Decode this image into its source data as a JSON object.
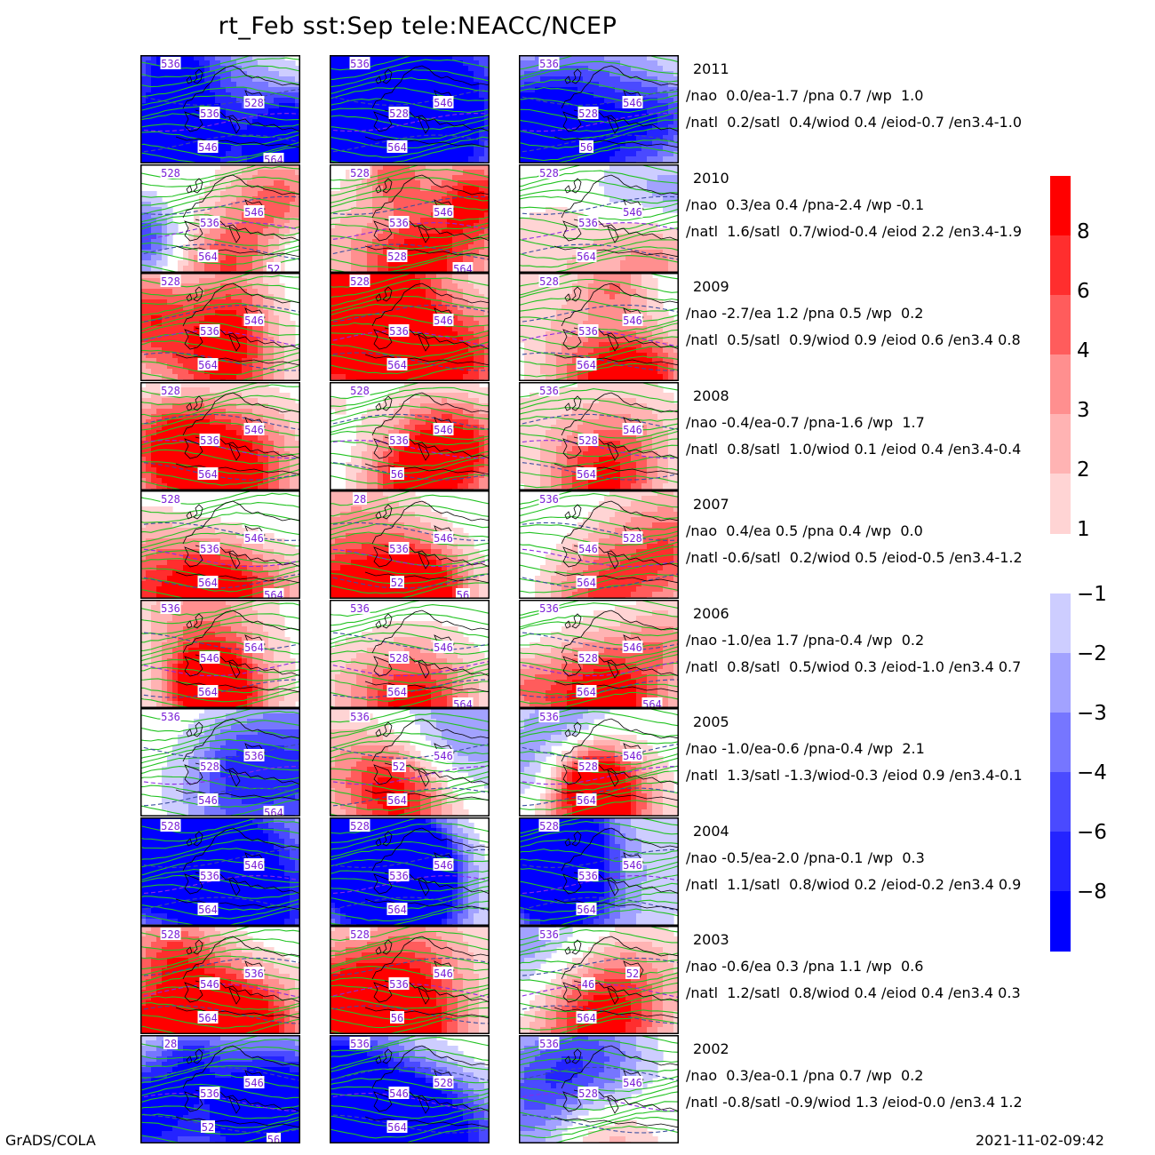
{
  "title": "rt_Feb  sst:Sep  tele:NEACC/NCEP",
  "footer_left": "GrADS/COLA",
  "footer_right": "2021-11-02-09:42",
  "colors": {
    "pos": [
      "#ffd4d4",
      "#ffb3b3",
      "#ff8f8f",
      "#ff5c5c",
      "#ff2e2e",
      "#ff0000"
    ],
    "neg": [
      "#cdcdff",
      "#a2a2ff",
      "#7676ff",
      "#4a4aff",
      "#2424ff",
      "#0000ff"
    ],
    "contour_green": "#22c322",
    "contour_dash_blue": "#3b4fa0",
    "contour_dash_purple": "#8a2be2",
    "coast": "#000000"
  },
  "colorbar_pos_labels": [
    "8",
    "6",
    "4",
    "3",
    "2",
    "1"
  ],
  "colorbar_neg_labels": [
    "-1",
    "-2",
    "-3",
    "-4",
    "-6",
    "-8"
  ],
  "rows": [
    {
      "year": "2011",
      "line1": "/nao  0.0/ea-1.7 /pna 0.7 /wp  1.0",
      "line2": "/natl  0.2/satl  0.4/wiod 0.4 /eiod-0.7 /en3.4-1.0",
      "panels": [
        {
          "bias": -3,
          "labels": [
            "536",
            "536",
            "528",
            "546",
            "564"
          ]
        },
        {
          "bias": -3,
          "labels": [
            "536",
            "528",
            "546",
            "564"
          ]
        },
        {
          "bias": -2,
          "labels": [
            "536",
            "528",
            "546",
            "56"
          ]
        }
      ]
    },
    {
      "year": "2010",
      "line1": "/nao  0.3/ea 0.4 /pna-2.4 /wp -0.1",
      "line2": "/natl  1.6/satl  0.7/wiod-0.4 /eiod 2.2 /en3.4-1.9",
      "panels": [
        {
          "bias": 0,
          "labels": [
            "528",
            "536",
            "546",
            "564",
            "52"
          ]
        },
        {
          "bias": 1,
          "labels": [
            "528",
            "536",
            "546",
            "528",
            "564"
          ]
        },
        {
          "bias": 0,
          "labels": [
            "528",
            "536",
            "546",
            "564"
          ]
        }
      ]
    },
    {
      "year": "2009",
      "line1": "/nao -2.7/ea 1.2 /pna 0.5 /wp  0.2",
      "line2": "/natl  0.5/satl  0.9/wiod 0.9 /eiod 0.6 /en3.4 0.8",
      "panels": [
        {
          "bias": 1,
          "labels": [
            "528",
            "536",
            "546",
            "564"
          ]
        },
        {
          "bias": 1,
          "labels": [
            "528",
            "536",
            "546",
            "564"
          ]
        },
        {
          "bias": 1,
          "labels": [
            "528",
            "536",
            "546",
            "564"
          ]
        }
      ]
    },
    {
      "year": "2008",
      "line1": "/nao -0.4/ea-0.7 /pna-1.6 /wp  1.7",
      "line2": "/natl  0.8/satl  1.0/wiod 0.1 /eiod 0.4 /en3.4-0.4",
      "panels": [
        {
          "bias": 1,
          "labels": [
            "528",
            "536",
            "546",
            "564"
          ]
        },
        {
          "bias": 1,
          "labels": [
            "528",
            "536",
            "546",
            "56"
          ]
        },
        {
          "bias": 0,
          "labels": [
            "536",
            "528",
            "546",
            "564"
          ]
        }
      ]
    },
    {
      "year": "2007",
      "line1": "/nao  0.4/ea 0.5 /pna 0.4 /wp  0.0",
      "line2": "/natl -0.6/satl  0.2/wiod 0.5 /eiod-0.5 /en3.4-1.2",
      "panels": [
        {
          "bias": 1,
          "labels": [
            "528",
            "536",
            "546",
            "564",
            "564"
          ]
        },
        {
          "bias": 1,
          "labels": [
            "28",
            "536",
            "546",
            "52",
            "56"
          ]
        },
        {
          "bias": 1,
          "labels": [
            "536",
            "546",
            "528",
            "564"
          ]
        }
      ]
    },
    {
      "year": "2006",
      "line1": "/nao -1.0/ea 1.7 /pna-0.4 /wp  0.2",
      "line2": "/natl  0.8/satl  0.5/wiod 0.3 /eiod-1.0 /en3.4 0.7",
      "panels": [
        {
          "bias": 1,
          "labels": [
            "536",
            "546",
            "564",
            "564"
          ]
        },
        {
          "bias": 1,
          "labels": [
            "536",
            "528",
            "546",
            "564",
            "564"
          ]
        },
        {
          "bias": 1,
          "labels": [
            "536",
            "528",
            "546",
            "564",
            "564"
          ]
        }
      ]
    },
    {
      "year": "2005",
      "line1": "/nao -1.0/ea-0.6 /pna-0.4 /wp  2.1",
      "line2": "/natl  1.3/satl -1.3/wiod-0.3 /eiod 0.9 /en3.4-0.1",
      "panels": [
        {
          "bias": -1,
          "labels": [
            "536",
            "528",
            "536",
            "546",
            "564"
          ]
        },
        {
          "bias": 0,
          "labels": [
            "536",
            "52",
            "546",
            "564"
          ]
        },
        {
          "bias": 0,
          "labels": [
            "536",
            "528",
            "546",
            "564"
          ]
        }
      ]
    },
    {
      "year": "2004",
      "line1": "/nao -0.5/ea-2.0 /pna-0.1 /wp  0.3",
      "line2": "/natl  1.1/satl  0.8/wiod 0.2 /eiod-0.2 /en3.4 0.9",
      "panels": [
        {
          "bias": -3,
          "labels": [
            "528",
            "536",
            "546",
            "564"
          ]
        },
        {
          "bias": -3,
          "labels": [
            "528",
            "536",
            "546",
            "564"
          ]
        },
        {
          "bias": -2,
          "labels": [
            "528",
            "536",
            "546",
            "564"
          ]
        }
      ]
    },
    {
      "year": "2003",
      "line1": "/nao -0.6/ea 0.3 /pna 1.1 /wp  0.6",
      "line2": "/natl  1.2/satl  0.8/wiod 0.4 /eiod 0.4 /en3.4 0.3",
      "panels": [
        {
          "bias": 1,
          "labels": [
            "528",
            "546",
            "536",
            "564"
          ]
        },
        {
          "bias": 1,
          "labels": [
            "528",
            "536",
            "546",
            "56"
          ]
        },
        {
          "bias": 0,
          "labels": [
            "536",
            "46",
            "52",
            "564"
          ]
        }
      ]
    },
    {
      "year": "2002",
      "line1": "/nao  0.3/ea-0.1 /pna 0.7 /wp  0.2",
      "line2": "/natl -0.8/satl -0.9/wiod 1.3 /eiod-0.0 /en3.4 1.2",
      "panels": [
        {
          "bias": -2,
          "labels": [
            "28",
            "536",
            "546",
            "52",
            "56"
          ]
        },
        {
          "bias": -2,
          "labels": [
            "536",
            "546",
            "528",
            "564"
          ]
        },
        {
          "bias": 0,
          "labels": [
            "536",
            "528",
            "546"
          ]
        }
      ]
    }
  ]
}
